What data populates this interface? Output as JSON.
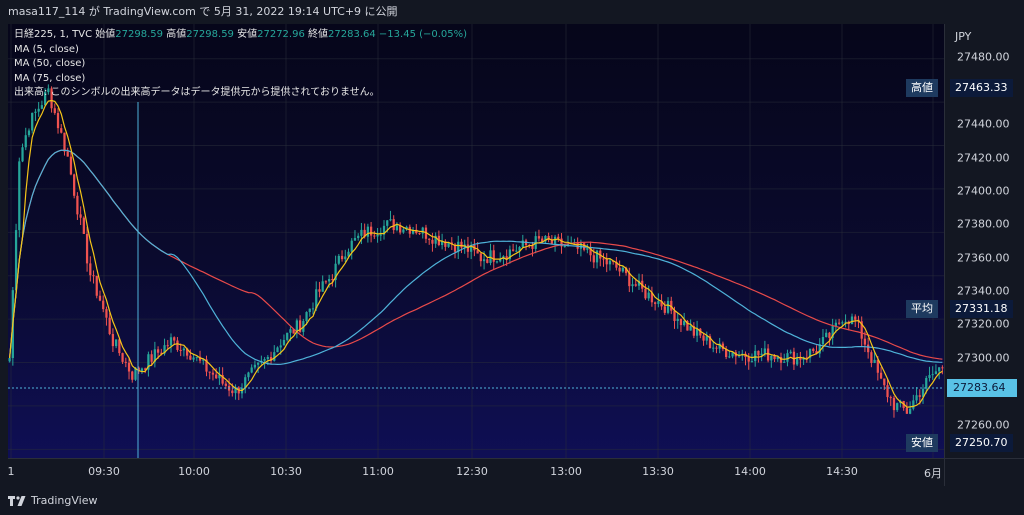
{
  "header": {
    "caption": "masa117_114 が TradingView.com で 5月 31, 2022 19:14 UTC+9 に公開"
  },
  "legend": {
    "symbol": "日経225, 1, TVC",
    "ohlc": [
      {
        "label": "始値",
        "value": "27298.59"
      },
      {
        "label": "高値",
        "value": "27298.59"
      },
      {
        "label": "安値",
        "value": "27272.96"
      },
      {
        "label": "終値",
        "value": "27283.64"
      }
    ],
    "change": "−13.45 (−0.05%)",
    "ma5": "MA (5, close)",
    "ma50": "MA (50, close)",
    "ma75": "MA (75, close)",
    "volume_note": "出来高: このシンボルの出来高データはデータ提供元から提供されておりません。"
  },
  "price_axis": {
    "currency": "JPY",
    "ticks": [
      "27480.00",
      "27440.00",
      "27420.00",
      "27400.00",
      "27380.00",
      "27360.00",
      "27340.00",
      "27320.00",
      "27300.00",
      "27260.00"
    ]
  },
  "markers": {
    "high": {
      "label": "高値",
      "value": "27463.33"
    },
    "avg": {
      "label": "平均",
      "value": "27331.18"
    },
    "low": {
      "label": "安値",
      "value": "27250.70"
    },
    "last": {
      "value": "27283.64"
    }
  },
  "time_axis": {
    "ticks": [
      "1",
      "09:30",
      "10:00",
      "10:30",
      "11:00",
      "12:30",
      "13:00",
      "13:30",
      "14:00",
      "14:30",
      "6月"
    ]
  },
  "footer": {
    "brand": "TradingView"
  },
  "colors": {
    "up": "#26a69a",
    "down": "#ef5350",
    "ma5": "#f5c518",
    "ma50": "#4fb3d9",
    "ma75": "#e84a4a",
    "crosshair": "#4fb3d9"
  },
  "chart_data": {
    "type": "candlestick",
    "symbol": "日経225",
    "interval": "1",
    "ylim": [
      27240,
      27500
    ],
    "close_path": [
      [
        0,
        27300
      ],
      [
        3,
        27420
      ],
      [
        6,
        27440
      ],
      [
        9,
        27450
      ],
      [
        12,
        27460
      ],
      [
        15,
        27440
      ],
      [
        18,
        27420
      ],
      [
        20,
        27400
      ],
      [
        22,
        27380
      ],
      [
        25,
        27350
      ],
      [
        28,
        27335
      ],
      [
        32,
        27310
      ],
      [
        38,
        27290
      ],
      [
        44,
        27300
      ],
      [
        50,
        27310
      ],
      [
        55,
        27305
      ],
      [
        60,
        27295
      ],
      [
        66,
        27285
      ],
      [
        70,
        27280
      ],
      [
        75,
        27290
      ],
      [
        80,
        27300
      ],
      [
        84,
        27310
      ],
      [
        90,
        27320
      ],
      [
        96,
        27340
      ],
      [
        100,
        27350
      ],
      [
        104,
        27365
      ],
      [
        110,
        27375
      ],
      [
        118,
        27380
      ],
      [
        125,
        27378
      ],
      [
        132,
        27372
      ],
      [
        138,
        27368
      ],
      [
        142,
        27365
      ],
      [
        146,
        27360
      ],
      [
        152,
        27362
      ],
      [
        158,
        27366
      ],
      [
        164,
        27370
      ],
      [
        170,
        27368
      ],
      [
        176,
        27365
      ],
      [
        180,
        27362
      ],
      [
        188,
        27354
      ],
      [
        196,
        27340
      ],
      [
        204,
        27330
      ],
      [
        212,
        27315
      ],
      [
        220,
        27305
      ],
      [
        228,
        27302
      ],
      [
        236,
        27302
      ],
      [
        244,
        27300
      ],
      [
        250,
        27305
      ],
      [
        255,
        27315
      ],
      [
        258,
        27325
      ],
      [
        262,
        27322
      ],
      [
        266,
        27305
      ],
      [
        270,
        27285
      ],
      [
        274,
        27272
      ],
      [
        278,
        27268
      ],
      [
        282,
        27280
      ],
      [
        286,
        27290
      ],
      [
        289,
        27295
      ]
    ]
  }
}
